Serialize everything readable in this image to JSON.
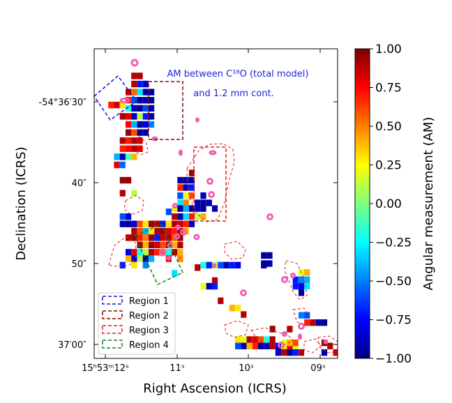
{
  "chart_data": {
    "type": "heatmap",
    "title_lines": [
      "AM between C¹⁸O (total model)",
      "and 1.2 mm cont."
    ],
    "xlabel": "Right Ascension (ICRS)",
    "ylabel": "Declination (ICRS)",
    "x_ticks": [
      {
        "label": "15ʰ53ᵐ12ˢ",
        "ra_sec": 12
      },
      {
        "label": "11ˢ",
        "ra_sec": 11
      },
      {
        "label": "10ˢ",
        "ra_sec": 10
      },
      {
        "label": "09ˢ",
        "ra_sec": 9
      }
    ],
    "y_ticks": [
      {
        "label": "-54°36′30″",
        "dec_arcsec": 30
      },
      {
        "label": "40″",
        "dec_arcsec": 40
      },
      {
        "label": "50″",
        "dec_arcsec": 50
      },
      {
        "label": "37′00″",
        "dec_arcsec": 60
      }
    ],
    "x_range_ra_sec": [
      12.17,
      8.75
    ],
    "y_range_dec_arcsec": [
      23.5,
      61.8
    ],
    "colorbar": {
      "label": "Angular measurement (AM)",
      "min": -1.0,
      "max": 1.0,
      "ticks": [
        "1.00",
        "0.75",
        "0.50",
        "0.25",
        "0.00",
        "−0.25",
        "−0.50",
        "−0.75",
        "−1.00"
      ],
      "tick_values": [
        1.0,
        0.75,
        0.5,
        0.25,
        0.0,
        -0.25,
        -0.5,
        -0.75,
        -1.0
      ],
      "colormap": "jet"
    },
    "legend": {
      "location": "lower-left",
      "entries": [
        {
          "label": "Region 1",
          "color": "#1010e0"
        },
        {
          "label": "Region 2",
          "color": "#8b0000"
        },
        {
          "label": "Region 3",
          "color": "#e41a1c"
        },
        {
          "label": "Region 4",
          "color": "#108010"
        }
      ]
    },
    "cells": [
      [
        11.6,
        26.8,
        0.9
      ],
      [
        11.52,
        26.8,
        0.9
      ],
      [
        11.6,
        27.8,
        0.9
      ],
      [
        11.52,
        27.8,
        -0.7
      ],
      [
        11.44,
        27.8,
        -0.85
      ],
      [
        11.68,
        28.8,
        0.9
      ],
      [
        11.6,
        28.8,
        0.55
      ],
      [
        11.52,
        28.8,
        -0.3
      ],
      [
        11.44,
        28.8,
        -0.9
      ],
      [
        11.36,
        28.8,
        -0.9
      ],
      [
        11.68,
        29.8,
        0.7
      ],
      [
        11.6,
        29.8,
        -0.6
      ],
      [
        11.52,
        29.8,
        -0.95
      ],
      [
        11.44,
        29.8,
        -0.9
      ],
      [
        11.36,
        29.8,
        -0.95
      ],
      [
        11.68,
        30.8,
        -0.2
      ],
      [
        11.6,
        30.8,
        -0.9
      ],
      [
        11.52,
        30.8,
        -0.95
      ],
      [
        11.44,
        30.8,
        -0.6
      ],
      [
        11.36,
        30.8,
        -0.9
      ],
      [
        11.76,
        31.8,
        0.9
      ],
      [
        11.68,
        31.8,
        0.8
      ],
      [
        11.6,
        31.8,
        -0.9
      ],
      [
        11.52,
        31.8,
        0.1
      ],
      [
        11.44,
        31.8,
        -0.7
      ],
      [
        11.36,
        31.8,
        -0.95
      ],
      [
        11.68,
        32.8,
        0.75
      ],
      [
        11.6,
        32.8,
        -0.4
      ],
      [
        11.52,
        32.8,
        -0.95
      ],
      [
        11.44,
        32.8,
        -0.8
      ],
      [
        11.36,
        32.8,
        -0.5
      ],
      [
        11.68,
        33.8,
        0.95
      ],
      [
        11.6,
        33.8,
        0.6
      ],
      [
        11.52,
        33.8,
        -0.95
      ],
      [
        11.44,
        33.8,
        -0.9
      ],
      [
        11.76,
        34.8,
        0.9
      ],
      [
        11.68,
        34.8,
        0.7
      ],
      [
        11.6,
        34.8,
        0.9
      ],
      [
        11.52,
        34.8,
        0.85
      ],
      [
        11.76,
        35.8,
        0.7
      ],
      [
        11.68,
        35.8,
        0.75
      ],
      [
        11.6,
        35.8,
        0.9
      ],
      [
        11.52,
        35.8,
        0.8
      ],
      [
        11.84,
        36.8,
        -0.4
      ],
      [
        11.76,
        36.8,
        -0.9
      ],
      [
        11.68,
        36.8,
        -0.1
      ],
      [
        11.6,
        36.8,
        0.4
      ],
      [
        11.84,
        37.8,
        0.8
      ],
      [
        11.76,
        37.8,
        -0.55
      ],
      [
        11.76,
        39.7,
        0.95
      ],
      [
        11.68,
        39.7,
        0.95
      ],
      [
        10.8,
        38.8,
        0.95
      ],
      [
        10.96,
        39.7,
        -0.95
      ],
      [
        10.88,
        39.7,
        -0.9
      ],
      [
        10.8,
        39.7,
        -0.95
      ],
      [
        10.96,
        40.6,
        0.7
      ],
      [
        10.88,
        40.6,
        -0.9
      ],
      [
        10.8,
        40.6,
        -0.7
      ],
      [
        10.96,
        41.6,
        -0.6
      ],
      [
        10.88,
        41.6,
        0.2
      ],
      [
        10.8,
        41.6,
        0.6
      ],
      [
        10.64,
        41.6,
        -0.9
      ],
      [
        11.76,
        41.3,
        0.9
      ],
      [
        11.6,
        41.3,
        0.1
      ],
      [
        10.72,
        42.5,
        -0.9
      ],
      [
        10.64,
        42.5,
        -0.95
      ],
      [
        10.56,
        42.5,
        -0.9
      ],
      [
        10.96,
        42.5,
        -0.3
      ],
      [
        10.88,
        42.5,
        0.5
      ],
      [
        11.04,
        43.2,
        0.3
      ],
      [
        10.96,
        43.2,
        -0.95
      ],
      [
        10.88,
        43.2,
        -0.4
      ],
      [
        10.8,
        43.2,
        -0.95
      ],
      [
        10.72,
        43.2,
        -0.9
      ],
      [
        10.64,
        43.2,
        -0.95
      ],
      [
        10.48,
        43.2,
        -0.9
      ],
      [
        11.12,
        43.6,
        -0.6
      ],
      [
        11.04,
        44.2,
        0.9
      ],
      [
        10.96,
        44.2,
        -0.9
      ],
      [
        10.88,
        44.2,
        -0.3
      ],
      [
        10.8,
        44.2,
        0.7
      ],
      [
        10.72,
        44.2,
        0.1
      ],
      [
        10.64,
        44.2,
        0.4
      ],
      [
        11.76,
        44.2,
        -0.6
      ],
      [
        11.68,
        44.2,
        -0.8
      ],
      [
        11.76,
        45.1,
        -0.9
      ],
      [
        11.68,
        45.1,
        -0.95
      ],
      [
        11.6,
        45.1,
        -0.85
      ],
      [
        11.52,
        45.1,
        0.6
      ],
      [
        11.44,
        45.1,
        0.3
      ],
      [
        11.36,
        45.1,
        0.95
      ],
      [
        11.28,
        45.1,
        0.9
      ],
      [
        11.2,
        45.1,
        -0.7
      ],
      [
        11.12,
        45.1,
        0.3
      ],
      [
        11.04,
        45.1,
        0.9
      ],
      [
        10.96,
        45.1,
        0.85
      ],
      [
        10.88,
        45.1,
        0.7
      ],
      [
        10.8,
        45.1,
        -0.9
      ],
      [
        11.6,
        46.0,
        0.9
      ],
      [
        11.52,
        46.0,
        0.6
      ],
      [
        11.44,
        46.0,
        -0.4
      ],
      [
        11.36,
        46.0,
        0.3
      ],
      [
        11.28,
        46.0,
        0.9
      ],
      [
        11.2,
        46.0,
        0.95
      ],
      [
        11.12,
        46.0,
        0.8
      ],
      [
        11.04,
        46.0,
        0.7
      ],
      [
        10.96,
        46.0,
        0.9
      ],
      [
        10.88,
        46.0,
        0.4
      ],
      [
        11.68,
        46.8,
        0.9
      ],
      [
        11.6,
        46.8,
        0.95
      ],
      [
        11.52,
        46.8,
        0.7
      ],
      [
        11.44,
        46.8,
        0.5
      ],
      [
        11.36,
        46.8,
        0.95
      ],
      [
        11.28,
        46.8,
        -0.7
      ],
      [
        11.2,
        46.8,
        0.85
      ],
      [
        11.12,
        46.8,
        0.9
      ],
      [
        11.04,
        46.8,
        0.6
      ],
      [
        10.96,
        46.8,
        0.95
      ],
      [
        11.52,
        47.7,
        0.95
      ],
      [
        11.44,
        47.7,
        0.4
      ],
      [
        11.36,
        47.7,
        0.95
      ],
      [
        11.28,
        47.7,
        0.85
      ],
      [
        11.2,
        47.7,
        0.6
      ],
      [
        11.12,
        47.7,
        0.9
      ],
      [
        11.04,
        47.7,
        0.4
      ],
      [
        10.96,
        47.7,
        0.9
      ],
      [
        11.68,
        48.6,
        -0.8
      ],
      [
        11.6,
        48.6,
        0.8
      ],
      [
        11.52,
        48.6,
        -0.2
      ],
      [
        11.44,
        48.6,
        0.1
      ],
      [
        11.36,
        48.6,
        0.9
      ],
      [
        11.28,
        48.6,
        0.7
      ],
      [
        11.2,
        48.6,
        0.55
      ],
      [
        11.12,
        48.6,
        -0.2
      ],
      [
        11.04,
        48.6,
        0.9
      ],
      [
        10.96,
        48.6,
        0.4
      ],
      [
        11.68,
        49.4,
        0.4
      ],
      [
        11.6,
        49.4,
        -0.8
      ],
      [
        11.52,
        49.4,
        0.1
      ],
      [
        11.44,
        49.4,
        -0.95
      ],
      [
        11.36,
        49.4,
        -0.4
      ],
      [
        11.12,
        49.4,
        0.8
      ],
      [
        10.96,
        49.4,
        0.5
      ],
      [
        11.76,
        50.2,
        -0.7
      ],
      [
        11.6,
        50.2,
        0.3
      ],
      [
        11.44,
        50.2,
        -0.5
      ],
      [
        10.64,
        50.2,
        -0.2
      ],
      [
        10.56,
        50.2,
        -0.7
      ],
      [
        10.48,
        50.2,
        0.1
      ],
      [
        10.4,
        50.2,
        -0.6
      ],
      [
        10.32,
        50.2,
        -0.9
      ],
      [
        10.24,
        50.2,
        -0.7
      ],
      [
        10.16,
        50.2,
        -0.8
      ],
      [
        10.72,
        50.5,
        0.9
      ],
      [
        11.04,
        51.2,
        -0.3
      ],
      [
        9.8,
        49.0,
        -0.95
      ],
      [
        9.72,
        49.0,
        -0.95
      ],
      [
        9.8,
        50.0,
        -0.95
      ],
      [
        9.72,
        50.0,
        -0.9
      ],
      [
        9.8,
        50.2,
        -0.95
      ],
      [
        10.48,
        52.1,
        0.9
      ],
      [
        9.28,
        51.1,
        0.2
      ],
      [
        9.2,
        51.1,
        0.4
      ],
      [
        9.36,
        52.0,
        -0.7
      ],
      [
        9.28,
        52.0,
        -0.5
      ],
      [
        9.2,
        52.0,
        -0.4
      ],
      [
        9.36,
        52.8,
        -0.7
      ],
      [
        9.28,
        52.8,
        -0.8
      ],
      [
        9.2,
        52.8,
        -0.3
      ],
      [
        9.28,
        53.6,
        -0.95
      ],
      [
        10.64,
        52.8,
        0.2
      ],
      [
        10.56,
        52.8,
        -0.9
      ],
      [
        10.48,
        52.8,
        -0.7
      ],
      [
        10.4,
        54.6,
        0.9
      ],
      [
        10.24,
        55.5,
        0.4
      ],
      [
        10.16,
        55.5,
        0.3
      ],
      [
        10.08,
        56.3,
        0.9
      ],
      [
        9.28,
        56.4,
        -0.5
      ],
      [
        9.2,
        56.4,
        -0.6
      ],
      [
        9.2,
        57.3,
        0.7
      ],
      [
        9.12,
        57.3,
        0.9
      ],
      [
        9.04,
        57.3,
        -0.9
      ],
      [
        8.96,
        57.3,
        -0.95
      ],
      [
        9.68,
        58.1,
        0.95
      ],
      [
        9.44,
        58.1,
        0.9
      ],
      [
        10.16,
        59.4,
        0.3
      ],
      [
        10.08,
        59.4,
        0.2
      ],
      [
        10.0,
        59.4,
        0.9
      ],
      [
        9.92,
        59.4,
        0.8
      ],
      [
        9.84,
        59.4,
        0.6
      ],
      [
        9.76,
        59.4,
        -0.2
      ],
      [
        9.68,
        59.4,
        0.9
      ],
      [
        10.16,
        60.2,
        -0.6
      ],
      [
        10.08,
        60.2,
        -0.9
      ],
      [
        10.0,
        60.2,
        0.4
      ],
      [
        9.92,
        60.2,
        0.7
      ],
      [
        9.84,
        60.2,
        -0.95
      ],
      [
        9.76,
        60.2,
        -0.9
      ],
      [
        9.68,
        60.2,
        0.9
      ],
      [
        9.6,
        60.2,
        -0.8
      ],
      [
        9.52,
        60.2,
        0.3
      ],
      [
        9.44,
        60.2,
        0.8
      ],
      [
        9.36,
        60.2,
        0.2
      ],
      [
        9.52,
        59.8,
        0.2
      ],
      [
        9.44,
        59.8,
        0.4
      ],
      [
        9.36,
        59.8,
        0.6
      ],
      [
        9.6,
        61.0,
        -0.9
      ],
      [
        9.52,
        61.0,
        0.9
      ],
      [
        9.44,
        61.0,
        -0.95
      ],
      [
        9.36,
        61.0,
        -0.7
      ],
      [
        9.28,
        61.0,
        0.9
      ],
      [
        8.96,
        59.8,
        0.95
      ],
      [
        8.88,
        60.2,
        0.9
      ],
      [
        8.8,
        61.0,
        0.85
      ],
      [
        8.96,
        61.0,
        -0.9
      ],
      [
        11.84,
        30.4,
        0.85
      ],
      [
        11.92,
        30.4,
        0.7
      ],
      [
        11.76,
        30.4,
        0.3
      ]
    ]
  }
}
